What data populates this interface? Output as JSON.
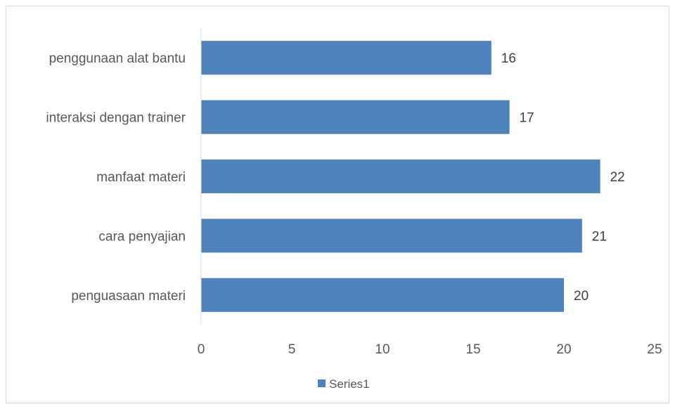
{
  "chart_data": {
    "type": "bar",
    "orientation": "horizontal",
    "categories": [
      "penggunaan alat bantu",
      "interaksi dengan trainer",
      "manfaat materi",
      "cara penyajian",
      "penguasaan materi"
    ],
    "series": [
      {
        "name": "Series1",
        "values": [
          16,
          17,
          22,
          21,
          20
        ],
        "color": "#4f81bd"
      }
    ],
    "xlim": [
      0,
      25
    ],
    "xticks": [
      0,
      5,
      10,
      15,
      20,
      25
    ],
    "grid": false,
    "legend": {
      "position": "bottom",
      "entries": [
        "Series1"
      ]
    },
    "data_labels": true
  }
}
